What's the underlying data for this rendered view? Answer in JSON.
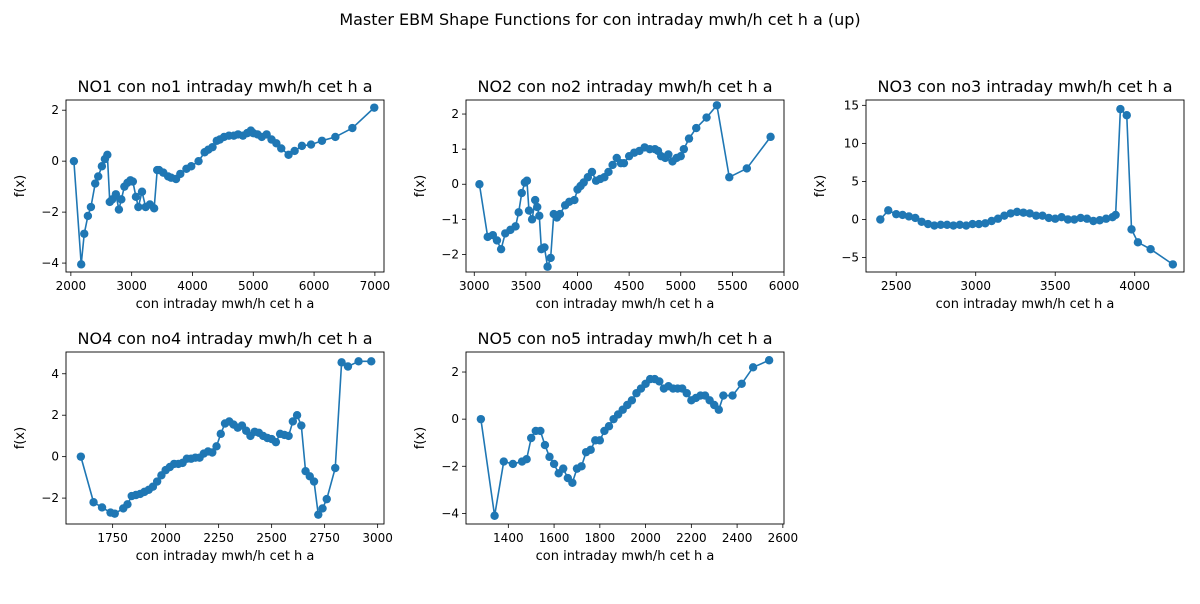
{
  "figure": {
    "suptitle": "Master EBM Shape Functions for con  intraday mwh/h cet h a (up)",
    "series_color": "#1f77b4"
  },
  "chart_data": [
    {
      "type": "line",
      "title": "NO1 con no1 intraday mwh/h cet h a",
      "xlabel": "con  intraday mwh/h cet h a",
      "ylabel": "f(x)",
      "xlim": [
        1920,
        7150
      ],
      "ylim": [
        -4.35,
        2.4
      ],
      "xticks": [
        2000,
        3000,
        4000,
        5000,
        6000,
        7000
      ],
      "yticks": [
        -4,
        -2,
        0,
        2
      ],
      "grid": false,
      "marker": "circle",
      "x": [
        2050,
        2170,
        2220,
        2280,
        2330,
        2400,
        2450,
        2510,
        2560,
        2600,
        2640,
        2680,
        2740,
        2790,
        2830,
        2880,
        2930,
        2980,
        3020,
        3070,
        3110,
        3170,
        3230,
        3300,
        3370,
        3420,
        3450,
        3520,
        3600,
        3650,
        3730,
        3800,
        3900,
        3980,
        4100,
        4200,
        4260,
        4330,
        4400,
        4450,
        4520,
        4600,
        4680,
        4750,
        4830,
        4900,
        4960,
        5000,
        5070,
        5140,
        5220,
        5300,
        5380,
        5460,
        5580,
        5680,
        5800,
        5950,
        6130,
        6350,
        6630,
        6990
      ],
      "y": [
        0.0,
        -4.05,
        -2.85,
        -2.15,
        -1.8,
        -0.88,
        -0.6,
        -0.2,
        0.08,
        0.25,
        -1.6,
        -1.5,
        -1.3,
        -1.9,
        -1.5,
        -1.0,
        -0.85,
        -0.75,
        -0.8,
        -1.4,
        -1.8,
        -1.2,
        -1.8,
        -1.7,
        -1.85,
        -0.35,
        -0.35,
        -0.45,
        -0.6,
        -0.65,
        -0.7,
        -0.5,
        -0.3,
        -0.2,
        0.0,
        0.35,
        0.45,
        0.55,
        0.8,
        0.85,
        0.95,
        1.0,
        1.0,
        1.05,
        1.0,
        1.1,
        1.2,
        1.1,
        1.05,
        0.95,
        1.05,
        0.85,
        0.7,
        0.5,
        0.25,
        0.4,
        0.6,
        0.65,
        0.8,
        0.95,
        1.3,
        2.1
      ]
    },
    {
      "type": "line",
      "title": "NO2 con no2 intraday mwh/h cet h a",
      "xlabel": "con  intraday mwh/h cet h a",
      "ylabel": "f(x)",
      "xlim": [
        2920,
        6000
      ],
      "ylim": [
        -2.5,
        2.4
      ],
      "xticks": [
        3000,
        3500,
        4000,
        4500,
        5000,
        5500,
        6000
      ],
      "yticks": [
        -2,
        -1,
        0,
        1,
        2
      ],
      "grid": false,
      "marker": "circle",
      "x": [
        3050,
        3130,
        3180,
        3220,
        3260,
        3300,
        3350,
        3400,
        3430,
        3460,
        3490,
        3510,
        3530,
        3560,
        3590,
        3610,
        3630,
        3650,
        3680,
        3710,
        3740,
        3770,
        3800,
        3830,
        3880,
        3920,
        3970,
        4000,
        4030,
        4060,
        4100,
        4140,
        4180,
        4220,
        4260,
        4300,
        4340,
        4380,
        4420,
        4450,
        4500,
        4550,
        4600,
        4650,
        4700,
        4750,
        4780,
        4810,
        4850,
        4880,
        4920,
        4960,
        5000,
        5030,
        5080,
        5150,
        5250,
        5350,
        5470,
        5640,
        5870
      ],
      "y": [
        0.0,
        -1.5,
        -1.45,
        -1.6,
        -1.85,
        -1.4,
        -1.3,
        -1.2,
        -0.8,
        -0.25,
        0.05,
        0.1,
        -0.75,
        -1.0,
        -0.45,
        -0.65,
        -0.9,
        -1.85,
        -1.8,
        -2.35,
        -2.1,
        -0.85,
        -0.95,
        -0.85,
        -0.6,
        -0.5,
        -0.45,
        -0.15,
        -0.05,
        0.05,
        0.2,
        0.35,
        0.1,
        0.15,
        0.2,
        0.35,
        0.55,
        0.75,
        0.6,
        0.6,
        0.8,
        0.9,
        0.95,
        1.05,
        1.0,
        1.0,
        0.95,
        0.8,
        0.75,
        0.85,
        0.65,
        0.75,
        0.8,
        1.0,
        1.3,
        1.6,
        1.9,
        2.25,
        0.2,
        0.45,
        1.35
      ]
    },
    {
      "type": "line",
      "title": "NO3 con no3 intraday mwh/h cet h a",
      "xlabel": "con  intraday mwh/h cet h a",
      "ylabel": "f(x)",
      "xlim": [
        2310,
        4310
      ],
      "ylim": [
        -6.9,
        15.7
      ],
      "xticks": [
        2500,
        3000,
        3500,
        4000
      ],
      "yticks": [
        -5,
        0,
        5,
        10,
        15
      ],
      "grid": false,
      "marker": "circle",
      "x": [
        2400,
        2450,
        2500,
        2540,
        2580,
        2620,
        2660,
        2700,
        2740,
        2780,
        2820,
        2860,
        2900,
        2940,
        2980,
        3020,
        3060,
        3100,
        3140,
        3180,
        3220,
        3260,
        3300,
        3340,
        3380,
        3420,
        3460,
        3500,
        3540,
        3580,
        3620,
        3660,
        3700,
        3740,
        3780,
        3820,
        3860,
        3880,
        3910,
        3950,
        3980,
        4020,
        4100,
        4240
      ],
      "y": [
        0.0,
        1.2,
        0.7,
        0.6,
        0.4,
        0.2,
        -0.3,
        -0.6,
        -0.8,
        -0.7,
        -0.7,
        -0.8,
        -0.7,
        -0.8,
        -0.6,
        -0.6,
        -0.5,
        -0.2,
        0.1,
        0.5,
        0.8,
        1.0,
        0.9,
        0.8,
        0.5,
        0.5,
        0.2,
        0.1,
        0.3,
        0.0,
        0.0,
        0.2,
        0.1,
        -0.2,
        -0.1,
        0.1,
        0.3,
        0.6,
        14.5,
        13.7,
        -1.3,
        -3.0,
        -3.9,
        -5.9
      ]
    },
    {
      "type": "line",
      "title": "NO4 con no4 intraday mwh/h cet h a",
      "xlabel": "con  intraday mwh/h cet h a",
      "ylabel": "f(x)",
      "xlim": [
        1530,
        3030
      ],
      "ylim": [
        -3.25,
        5.05
      ],
      "xticks": [
        1750,
        2000,
        2250,
        2500,
        2750,
        3000
      ],
      "yticks": [
        -2,
        0,
        2,
        4
      ],
      "grid": false,
      "marker": "circle",
      "x": [
        1600,
        1660,
        1700,
        1740,
        1760,
        1800,
        1820,
        1840,
        1860,
        1880,
        1900,
        1920,
        1940,
        1960,
        1980,
        2000,
        2020,
        2040,
        2060,
        2080,
        2100,
        2120,
        2140,
        2160,
        2180,
        2200,
        2220,
        2240,
        2260,
        2280,
        2300,
        2320,
        2340,
        2360,
        2380,
        2400,
        2420,
        2440,
        2460,
        2480,
        2500,
        2520,
        2540,
        2560,
        2580,
        2600,
        2620,
        2640,
        2660,
        2680,
        2700,
        2720,
        2740,
        2760,
        2800,
        2830,
        2860,
        2910,
        2970
      ],
      "y": [
        0.0,
        -2.2,
        -2.45,
        -2.7,
        -2.75,
        -2.5,
        -2.3,
        -1.9,
        -1.85,
        -1.8,
        -1.7,
        -1.6,
        -1.45,
        -1.2,
        -0.9,
        -0.65,
        -0.5,
        -0.35,
        -0.35,
        -0.3,
        -0.1,
        -0.1,
        -0.05,
        -0.05,
        0.15,
        0.25,
        0.2,
        0.5,
        1.1,
        1.6,
        1.7,
        1.55,
        1.4,
        1.5,
        1.25,
        1.0,
        1.2,
        1.15,
        1.0,
        0.9,
        0.85,
        0.7,
        1.1,
        1.05,
        1.0,
        1.7,
        2.0,
        1.5,
        -0.7,
        -0.95,
        -1.2,
        -2.8,
        -2.5,
        -2.05,
        -0.55,
        4.55,
        4.35,
        4.6,
        4.6
      ]
    },
    {
      "type": "line",
      "title": "NO5 con no5 intraday mwh/h cet h a",
      "xlabel": "con  intraday mwh/h cet h a",
      "ylabel": "f(x)",
      "xlim": [
        1215,
        2605
      ],
      "ylim": [
        -4.45,
        2.85
      ],
      "xticks": [
        1400,
        1600,
        1800,
        2000,
        2200,
        2400,
        2600
      ],
      "yticks": [
        -4,
        -2,
        0,
        2
      ],
      "grid": false,
      "marker": "circle",
      "x": [
        1280,
        1340,
        1380,
        1420,
        1460,
        1480,
        1500,
        1520,
        1540,
        1560,
        1580,
        1600,
        1620,
        1640,
        1660,
        1680,
        1700,
        1720,
        1740,
        1760,
        1780,
        1800,
        1820,
        1840,
        1860,
        1880,
        1900,
        1920,
        1940,
        1960,
        1980,
        2000,
        2020,
        2040,
        2060,
        2080,
        2100,
        2120,
        2140,
        2160,
        2180,
        2200,
        2220,
        2240,
        2260,
        2280,
        2300,
        2320,
        2340,
        2380,
        2420,
        2470,
        2540
      ],
      "y": [
        0.0,
        -4.1,
        -1.8,
        -1.9,
        -1.8,
        -1.7,
        -0.8,
        -0.5,
        -0.5,
        -1.1,
        -1.6,
        -1.9,
        -2.3,
        -2.1,
        -2.5,
        -2.7,
        -2.1,
        -2.0,
        -1.4,
        -1.3,
        -0.9,
        -0.9,
        -0.5,
        -0.3,
        0.0,
        0.2,
        0.4,
        0.6,
        0.8,
        1.1,
        1.3,
        1.5,
        1.7,
        1.7,
        1.6,
        1.3,
        1.4,
        1.3,
        1.3,
        1.3,
        1.1,
        0.8,
        0.9,
        1.0,
        1.0,
        0.8,
        0.6,
        0.4,
        1.0,
        1.0,
        1.5,
        2.2,
        2.5
      ]
    }
  ]
}
